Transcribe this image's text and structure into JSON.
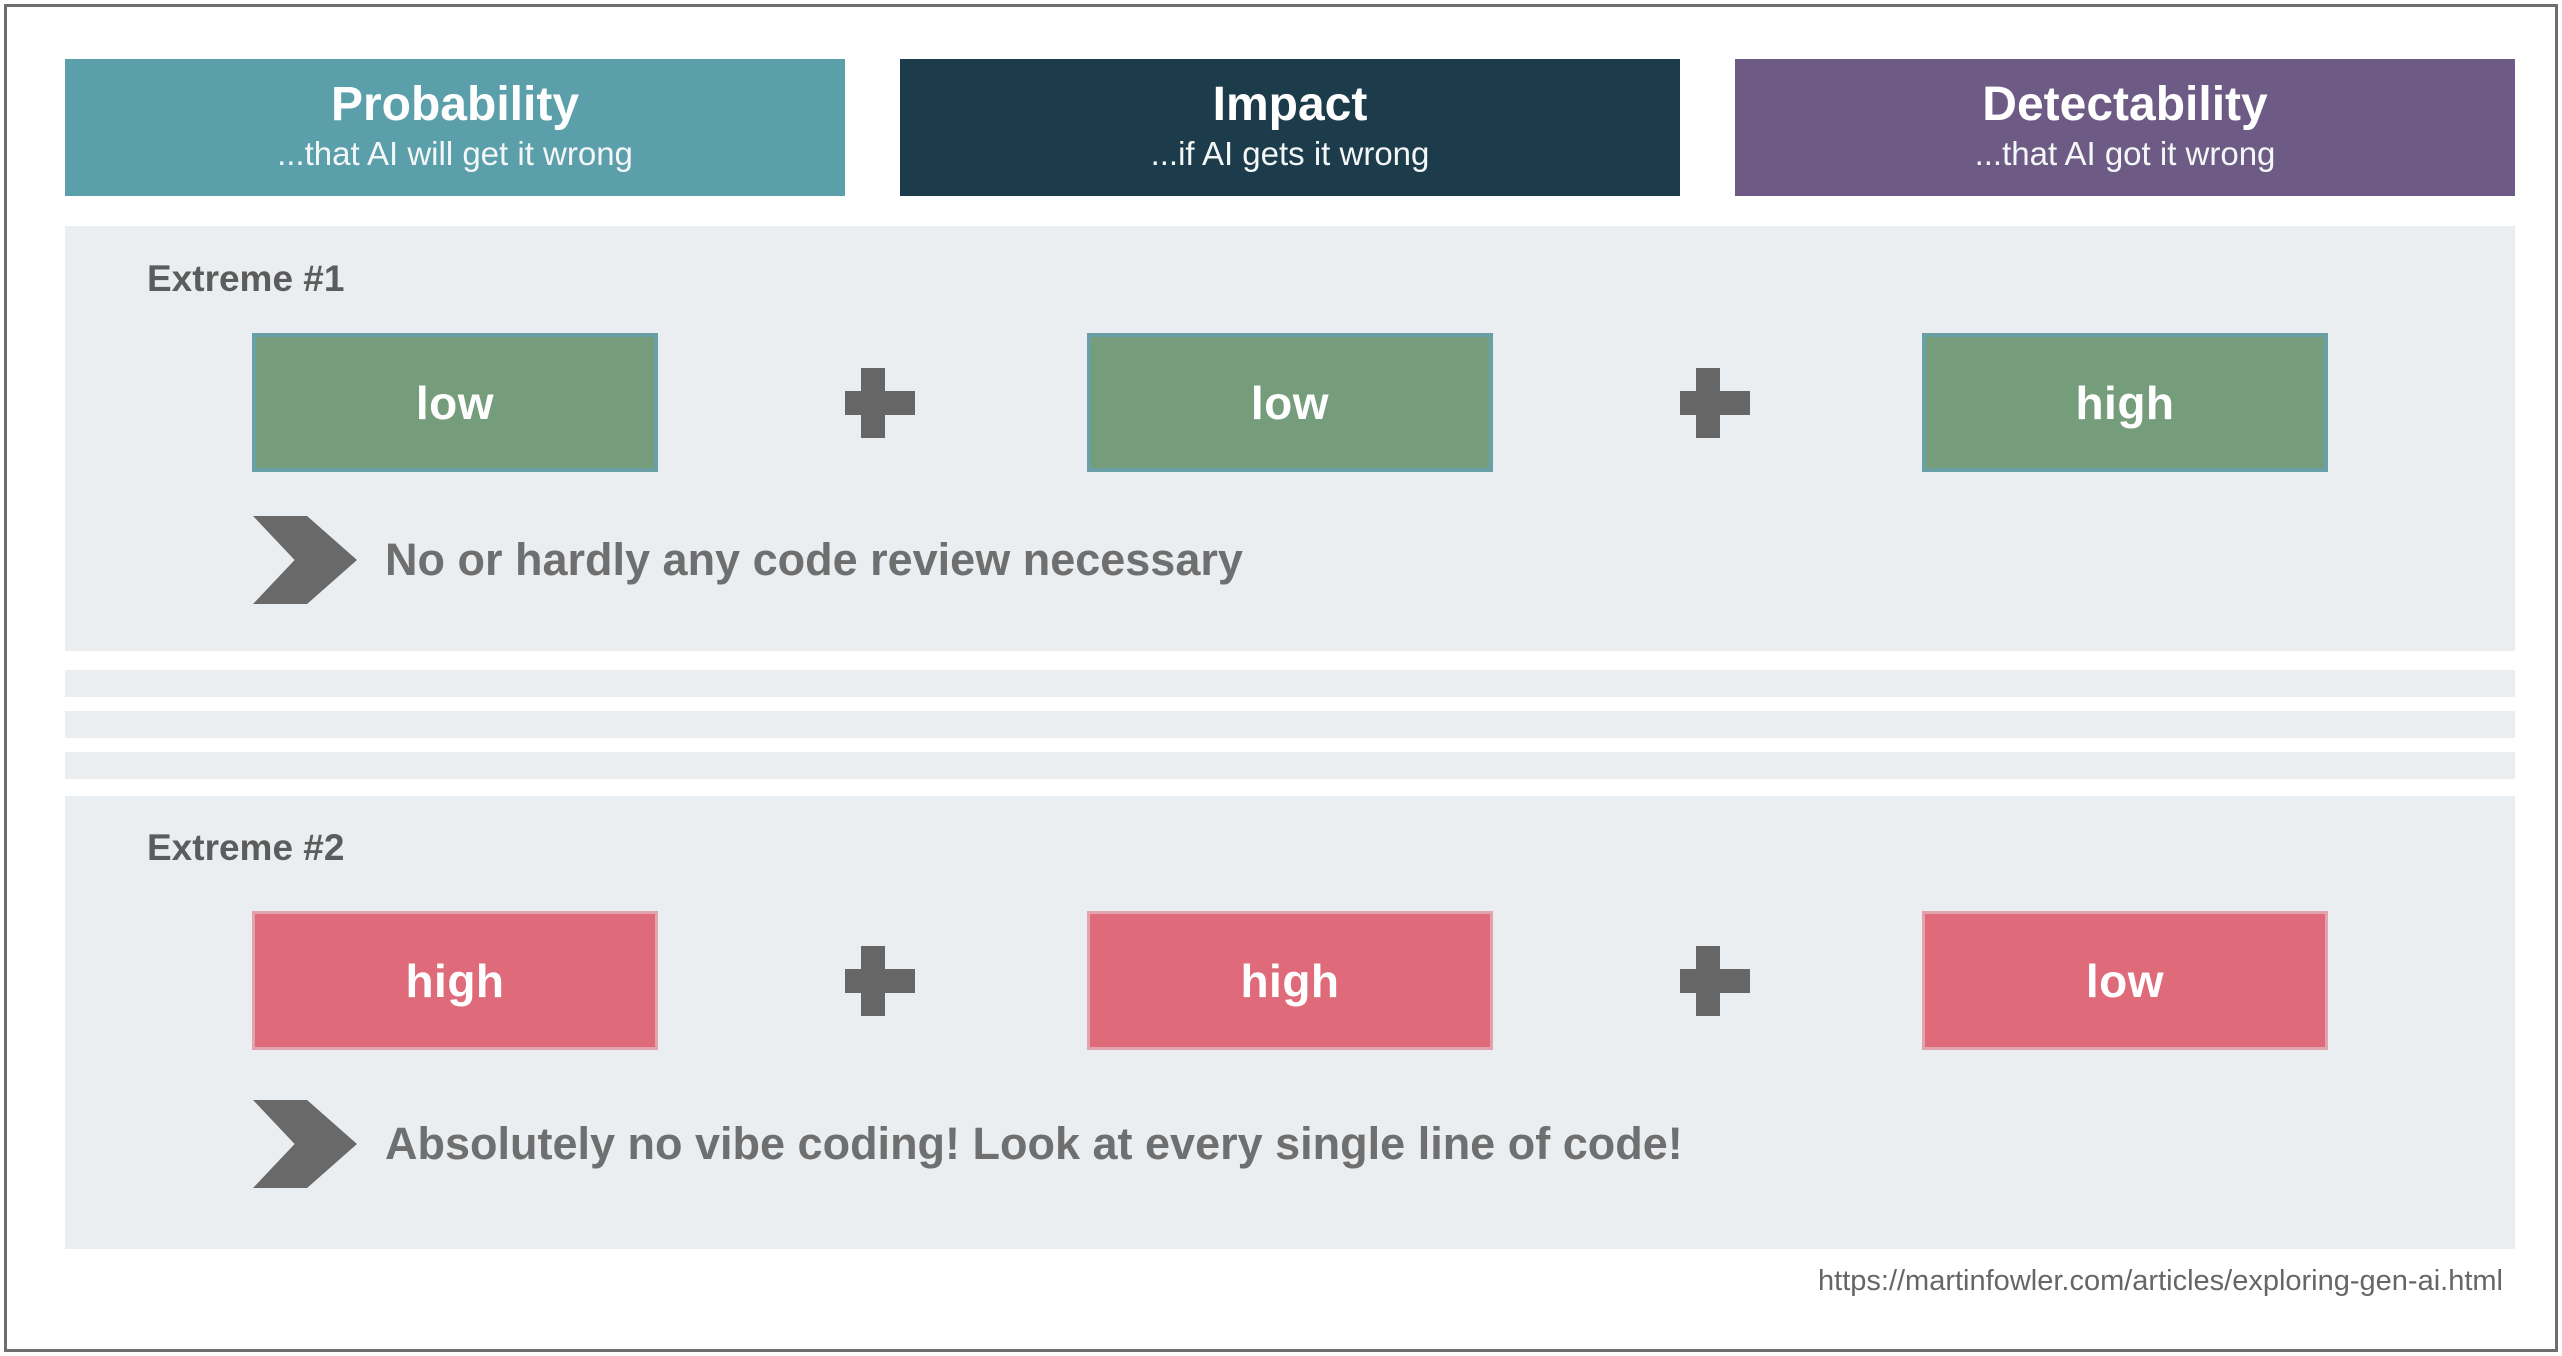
{
  "headers": [
    {
      "title": "Probability",
      "subtitle": "...that AI will get it wrong",
      "bg": "#5b9faa"
    },
    {
      "title": "Impact",
      "subtitle": "...if AI gets it wrong",
      "bg": "#1d3c4b"
    },
    {
      "title": "Detectability",
      "subtitle": "...that AI got it wrong",
      "bg": "#6d5b86"
    }
  ],
  "scenarios": [
    {
      "label": "Extreme #1",
      "values": [
        "low",
        "low",
        "high"
      ],
      "tone": "positive",
      "box_color": "#759d7c",
      "box_border_color": "#68a0a6",
      "conclusion": "No or hardly any code review necessary"
    },
    {
      "label": "Extreme #2",
      "values": [
        "high",
        "high",
        "low"
      ],
      "tone": "negative",
      "box_color": "#de6a7a",
      "box_border_color": "#e2a3ad",
      "conclusion": "Absolutely no vibe coding! Look at every single line of code!"
    }
  ],
  "footer": {
    "source_url": "https://martinfowler.com/articles/exploring-gen-ai.html"
  },
  "colors": {
    "page_bg": "#ffffff",
    "frame_border": "#6e6e6e",
    "panel_bg": "#ebeef0",
    "plus_gray": "#666666",
    "chevron_gray": "#696969",
    "label_gray": "#5c5c5c",
    "caption_gray": "#6f6f6f",
    "url_gray": "#666666"
  }
}
